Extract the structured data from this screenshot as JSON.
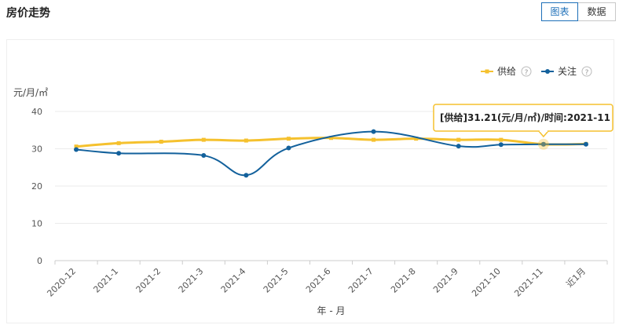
{
  "title": "房价走势",
  "tabs": [
    {
      "label": "图表",
      "active": true
    },
    {
      "label": "数据",
      "active": false
    }
  ],
  "chart_data": {
    "type": "line",
    "categories": [
      "2020-12",
      "2021-1",
      "2021-2",
      "2021-3",
      "2021-4",
      "2021-5",
      "2021-6",
      "2021-7",
      "2021-8",
      "2021-9",
      "2021-10",
      "2021-11",
      "近1月"
    ],
    "series": [
      {
        "name": "供给",
        "color": "#f5c12e",
        "values": [
          30.6,
          31.5,
          31.9,
          32.4,
          32.2,
          32.7,
          32.9,
          32.4,
          32.7,
          32.4,
          32.4,
          31.21,
          31.3
        ]
      },
      {
        "name": "关注",
        "color": "#13619c",
        "values": [
          29.8,
          28.8,
          null,
          28.2,
          22.9,
          30.2,
          null,
          34.6,
          null,
          30.7,
          31.1,
          31.2,
          31.2
        ]
      }
    ],
    "ylabel": "元/月/㎡",
    "xlabel": "年 - 月",
    "ylim": [
      0,
      40
    ],
    "yticks": [
      0,
      10,
      20,
      30,
      40
    ],
    "help_icon": "?",
    "legend": "top-right",
    "tooltip": {
      "text": "[供给]31.21(元/月/㎡)/时间:2021-11",
      "series": "供给",
      "category_index": 11
    }
  }
}
